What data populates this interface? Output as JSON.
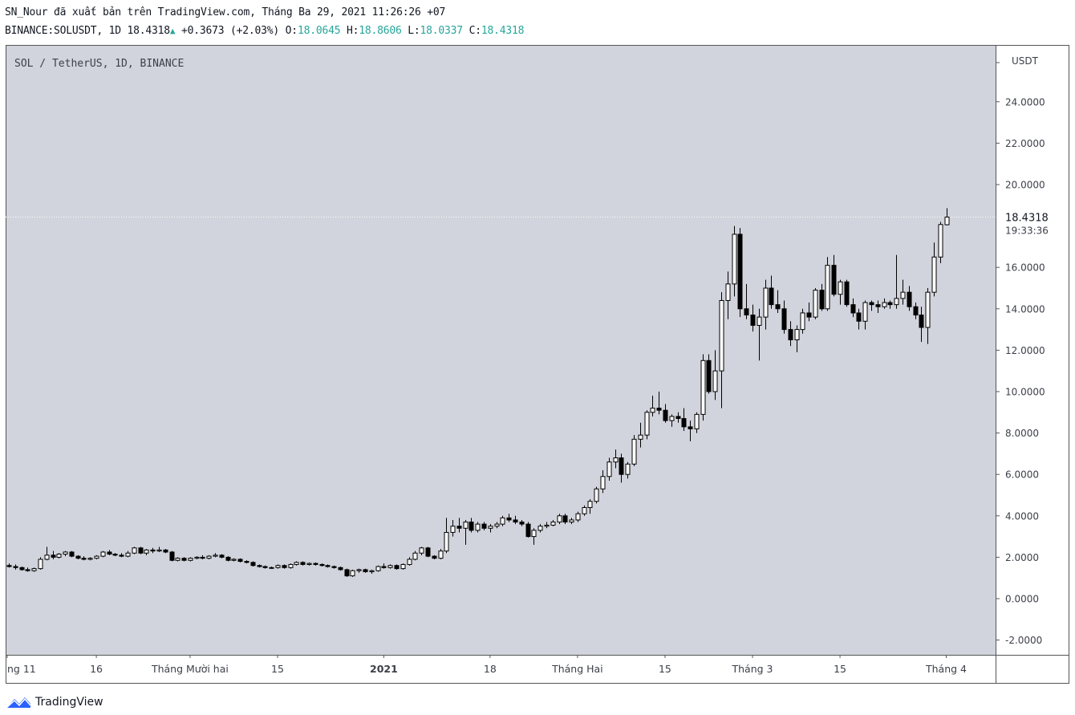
{
  "header": {
    "publish_line": "SN_Nour đã xuất bản trên TradingView.com, Tháng Ba 29, 2021 11:26:26 +07",
    "symbol": "BINANCE:SOLUSDT, 1D 18.4318",
    "change": "+0.3673 (+2.03%)",
    "o_label": "O:",
    "o_value": "18.0645",
    "h_label": "H:",
    "h_value": "18.8606",
    "l_label": "L:",
    "l_value": "18.0337",
    "c_label": "C:",
    "c_value": "18.4318"
  },
  "chart_label": "SOL / TetherUS, 1D, BINANCE",
  "price_axis": {
    "currency": "USDT",
    "last_price": "18.4318",
    "countdown": "19:33:36"
  },
  "brand": {
    "name": "TradingView"
  },
  "colors": {
    "background": "#d1d4dc",
    "candle_up_fill": "#ffffff",
    "candle_down_fill": "#000000",
    "wick": "#000000",
    "accent": "#26a69a"
  },
  "chart_data": {
    "type": "candlestick",
    "title": "SOL / TetherUS, 1D, BINANCE",
    "ylabel": "USDT",
    "ylim": [
      -2.6,
      26.5
    ],
    "y_ticks": [
      "-2.0000",
      "0.0000",
      "2.0000",
      "4.0000",
      "6.0000",
      "8.0000",
      "10.0000",
      "12.0000",
      "14.0000",
      "16.0000",
      "18.0000",
      "20.0000",
      "22.0000",
      "24.0000"
    ],
    "x_ticks": [
      {
        "label": "ng 11",
        "index": 0,
        "bold": false
      },
      {
        "label": "16",
        "index": 14,
        "bold": false
      },
      {
        "label": "Tháng Mười hai",
        "index": 29,
        "bold": false
      },
      {
        "label": "15",
        "index": 43,
        "bold": false
      },
      {
        "label": "2021",
        "index": 60,
        "bold": true
      },
      {
        "label": "18",
        "index": 77,
        "bold": false
      },
      {
        "label": "Tháng Hai",
        "index": 91,
        "bold": false
      },
      {
        "label": "15",
        "index": 105,
        "bold": false
      },
      {
        "label": "Tháng 3",
        "index": 119,
        "bold": false
      },
      {
        "label": "15",
        "index": 133,
        "bold": false
      },
      {
        "label": "Tháng 4",
        "index": 150,
        "bold": false
      }
    ],
    "candles": [
      [
        1.6,
        1.7,
        1.5,
        1.55
      ],
      [
        1.55,
        1.65,
        1.4,
        1.5
      ],
      [
        1.5,
        1.55,
        1.35,
        1.4
      ],
      [
        1.4,
        1.5,
        1.3,
        1.35
      ],
      [
        1.35,
        1.5,
        1.3,
        1.45
      ],
      [
        1.45,
        2.0,
        1.4,
        1.9
      ],
      [
        1.9,
        2.5,
        1.85,
        2.1
      ],
      [
        2.1,
        2.3,
        1.9,
        2.0
      ],
      [
        2.0,
        2.2,
        1.95,
        2.15
      ],
      [
        2.15,
        2.3,
        2.05,
        2.25
      ],
      [
        2.25,
        2.3,
        2.0,
        2.05
      ],
      [
        2.05,
        2.1,
        1.9,
        1.95
      ],
      [
        1.95,
        2.05,
        1.85,
        1.9
      ],
      [
        1.9,
        2.0,
        1.85,
        1.95
      ],
      [
        1.95,
        2.1,
        1.9,
        2.05
      ],
      [
        2.05,
        2.3,
        2.0,
        2.25
      ],
      [
        2.25,
        2.35,
        2.1,
        2.15
      ],
      [
        2.15,
        2.2,
        2.05,
        2.1
      ],
      [
        2.1,
        2.2,
        2.0,
        2.05
      ],
      [
        2.05,
        2.3,
        2.0,
        2.2
      ],
      [
        2.2,
        2.5,
        2.15,
        2.45
      ],
      [
        2.45,
        2.5,
        2.15,
        2.2
      ],
      [
        2.2,
        2.4,
        2.1,
        2.35
      ],
      [
        2.35,
        2.45,
        2.2,
        2.3
      ],
      [
        2.3,
        2.5,
        2.25,
        2.35
      ],
      [
        2.35,
        2.4,
        2.2,
        2.25
      ],
      [
        2.25,
        2.3,
        1.8,
        1.85
      ],
      [
        1.85,
        2.0,
        1.8,
        1.95
      ],
      [
        1.95,
        2.0,
        1.8,
        1.85
      ],
      [
        1.85,
        2.0,
        1.8,
        1.95
      ],
      [
        1.95,
        2.05,
        1.9,
        2.0
      ],
      [
        2.0,
        2.1,
        1.9,
        1.95
      ],
      [
        1.95,
        2.1,
        1.9,
        2.05
      ],
      [
        2.05,
        2.2,
        2.0,
        2.1
      ],
      [
        2.1,
        2.15,
        1.95,
        2.0
      ],
      [
        2.0,
        2.05,
        1.8,
        1.85
      ],
      [
        1.85,
        1.95,
        1.8,
        1.9
      ],
      [
        1.9,
        1.95,
        1.75,
        1.8
      ],
      [
        1.8,
        1.85,
        1.7,
        1.75
      ],
      [
        1.75,
        1.8,
        1.55,
        1.6
      ],
      [
        1.6,
        1.65,
        1.5,
        1.55
      ],
      [
        1.55,
        1.6,
        1.45,
        1.5
      ],
      [
        1.5,
        1.55,
        1.45,
        1.5
      ],
      [
        1.5,
        1.65,
        1.45,
        1.6
      ],
      [
        1.6,
        1.65,
        1.45,
        1.5
      ],
      [
        1.5,
        1.7,
        1.45,
        1.65
      ],
      [
        1.65,
        1.8,
        1.6,
        1.75
      ],
      [
        1.75,
        1.8,
        1.6,
        1.65
      ],
      [
        1.65,
        1.75,
        1.6,
        1.7
      ],
      [
        1.7,
        1.75,
        1.6,
        1.65
      ],
      [
        1.65,
        1.7,
        1.55,
        1.6
      ],
      [
        1.6,
        1.65,
        1.5,
        1.55
      ],
      [
        1.55,
        1.6,
        1.45,
        1.5
      ],
      [
        1.5,
        1.55,
        1.35,
        1.4
      ],
      [
        1.4,
        1.45,
        1.05,
        1.1
      ],
      [
        1.1,
        1.4,
        1.05,
        1.35
      ],
      [
        1.35,
        1.45,
        1.25,
        1.4
      ],
      [
        1.4,
        1.45,
        1.25,
        1.3
      ],
      [
        1.3,
        1.4,
        1.2,
        1.35
      ],
      [
        1.35,
        1.6,
        1.3,
        1.55
      ],
      [
        1.55,
        1.7,
        1.45,
        1.5
      ],
      [
        1.5,
        1.65,
        1.45,
        1.6
      ],
      [
        1.6,
        1.65,
        1.4,
        1.45
      ],
      [
        1.45,
        1.7,
        1.4,
        1.65
      ],
      [
        1.65,
        2.0,
        1.6,
        1.9
      ],
      [
        1.9,
        2.3,
        1.85,
        2.2
      ],
      [
        2.2,
        2.5,
        2.1,
        2.45
      ],
      [
        2.45,
        2.5,
        2.0,
        2.05
      ],
      [
        2.05,
        2.1,
        1.9,
        1.95
      ],
      [
        1.95,
        2.4,
        1.9,
        2.3
      ],
      [
        2.3,
        3.9,
        2.2,
        3.2
      ],
      [
        3.2,
        3.8,
        3.0,
        3.5
      ],
      [
        3.5,
        3.9,
        3.2,
        3.4
      ],
      [
        3.4,
        3.8,
        2.6,
        3.7
      ],
      [
        3.7,
        3.9,
        3.2,
        3.3
      ],
      [
        3.3,
        3.7,
        3.2,
        3.6
      ],
      [
        3.6,
        3.7,
        3.3,
        3.4
      ],
      [
        3.4,
        3.6,
        3.2,
        3.5
      ],
      [
        3.5,
        3.7,
        3.4,
        3.6
      ],
      [
        3.6,
        4.0,
        3.5,
        3.9
      ],
      [
        3.9,
        4.1,
        3.7,
        3.8
      ],
      [
        3.8,
        4.0,
        3.6,
        3.7
      ],
      [
        3.7,
        3.8,
        3.5,
        3.6
      ],
      [
        3.6,
        3.7,
        2.95,
        3.0
      ],
      [
        3.0,
        3.4,
        2.6,
        3.3
      ],
      [
        3.3,
        3.6,
        3.2,
        3.5
      ],
      [
        3.5,
        3.7,
        3.4,
        3.55
      ],
      [
        3.55,
        3.8,
        3.5,
        3.7
      ],
      [
        3.7,
        4.1,
        3.6,
        4.0
      ],
      [
        4.0,
        4.1,
        3.6,
        3.7
      ],
      [
        3.7,
        3.9,
        3.6,
        3.8
      ],
      [
        3.8,
        4.2,
        3.7,
        4.1
      ],
      [
        4.1,
        4.5,
        4.0,
        4.4
      ],
      [
        4.4,
        4.8,
        4.1,
        4.7
      ],
      [
        4.7,
        5.4,
        4.6,
        5.3
      ],
      [
        5.3,
        6.2,
        5.1,
        5.9
      ],
      [
        5.9,
        6.8,
        5.7,
        6.6
      ],
      [
        6.6,
        7.2,
        6.3,
        6.8
      ],
      [
        6.8,
        7.0,
        5.6,
        6.0
      ],
      [
        6.0,
        6.6,
        5.8,
        6.5
      ],
      [
        6.5,
        7.9,
        6.4,
        7.7
      ],
      [
        7.7,
        8.5,
        7.3,
        7.9
      ],
      [
        7.9,
        9.1,
        7.7,
        9.0
      ],
      [
        9.0,
        9.8,
        8.8,
        9.2
      ],
      [
        9.2,
        10.0,
        8.9,
        9.1
      ],
      [
        9.1,
        9.4,
        8.5,
        8.6
      ],
      [
        8.6,
        8.9,
        8.3,
        8.8
      ],
      [
        8.8,
        9.0,
        8.5,
        8.7
      ],
      [
        8.7,
        9.2,
        8.1,
        8.3
      ],
      [
        8.3,
        8.6,
        7.6,
        8.2
      ],
      [
        8.2,
        9.0,
        8.0,
        8.9
      ],
      [
        8.9,
        11.8,
        8.6,
        11.5
      ],
      [
        11.5,
        11.8,
        9.9,
        10.0
      ],
      [
        10.0,
        12.0,
        9.6,
        11.0
      ],
      [
        11.0,
        14.8,
        9.2,
        14.4
      ],
      [
        14.4,
        15.8,
        13.5,
        15.2
      ],
      [
        15.2,
        18.0,
        14.6,
        17.6
      ],
      [
        17.6,
        17.9,
        13.6,
        14.0
      ],
      [
        14.0,
        15.2,
        13.5,
        13.7
      ],
      [
        13.7,
        14.2,
        12.9,
        13.2
      ],
      [
        13.2,
        14.0,
        11.5,
        13.6
      ],
      [
        13.6,
        15.4,
        13.0,
        15.0
      ],
      [
        15.0,
        15.6,
        14.0,
        14.2
      ],
      [
        14.2,
        14.9,
        13.8,
        14.0
      ],
      [
        14.0,
        14.4,
        12.8,
        13.0
      ],
      [
        13.0,
        13.4,
        12.2,
        12.5
      ],
      [
        12.5,
        13.2,
        11.9,
        13.0
      ],
      [
        13.0,
        14.0,
        12.8,
        13.8
      ],
      [
        13.8,
        14.3,
        13.4,
        13.6
      ],
      [
        13.6,
        15.0,
        13.5,
        14.9
      ],
      [
        14.9,
        15.2,
        13.9,
        14.0
      ],
      [
        14.0,
        16.5,
        13.9,
        16.1
      ],
      [
        16.1,
        16.6,
        14.6,
        14.7
      ],
      [
        14.7,
        15.4,
        14.2,
        15.3
      ],
      [
        15.3,
        15.4,
        14.1,
        14.2
      ],
      [
        14.2,
        14.5,
        13.6,
        13.8
      ],
      [
        13.8,
        14.0,
        13.0,
        13.4
      ],
      [
        13.4,
        14.4,
        13.0,
        14.3
      ],
      [
        14.3,
        14.4,
        13.9,
        14.2
      ],
      [
        14.2,
        14.4,
        13.8,
        14.1
      ],
      [
        14.1,
        14.5,
        14.0,
        14.3
      ],
      [
        14.3,
        14.4,
        14.0,
        14.2
      ],
      [
        14.2,
        16.6,
        14.0,
        14.5
      ],
      [
        14.5,
        15.4,
        14.2,
        14.8
      ],
      [
        14.8,
        15.1,
        13.9,
        14.1
      ],
      [
        14.1,
        14.3,
        13.5,
        13.7
      ],
      [
        13.7,
        14.1,
        12.4,
        13.1
      ],
      [
        13.1,
        15.0,
        12.3,
        14.8
      ],
      [
        14.8,
        17.2,
        14.6,
        16.5
      ],
      [
        16.5,
        18.2,
        16.2,
        18.07
      ],
      [
        18.06,
        18.86,
        18.03,
        18.43
      ]
    ]
  }
}
